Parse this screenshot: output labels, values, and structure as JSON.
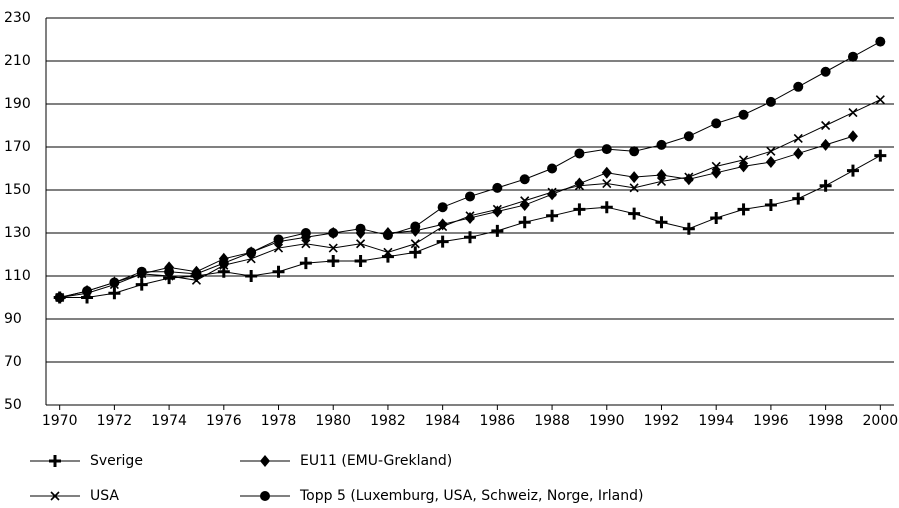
{
  "chart_data": {
    "type": "line",
    "x": [
      1970,
      1971,
      1972,
      1973,
      1974,
      1975,
      1976,
      1977,
      1978,
      1979,
      1980,
      1981,
      1982,
      1983,
      1984,
      1985,
      1986,
      1987,
      1988,
      1989,
      1990,
      1991,
      1992,
      1993,
      1994,
      1995,
      1996,
      1997,
      1998,
      1999,
      2000
    ],
    "series": [
      {
        "name": "Sverige",
        "color": "#000000",
        "marker": "plus",
        "values": [
          100,
          100,
          102,
          106,
          109,
          110,
          112,
          110,
          112,
          116,
          117,
          117,
          119,
          121,
          126,
          128,
          131,
          135,
          138,
          141,
          142,
          139,
          135,
          132,
          137,
          141,
          143,
          146,
          152,
          159,
          166
        ]
      },
      {
        "name": "EU11 (EMU-Grekland)",
        "color": "#000000",
        "marker": "diamond",
        "values": [
          100,
          103,
          107,
          111,
          114,
          112,
          118,
          121,
          126,
          128,
          130,
          130,
          130,
          131,
          134,
          137,
          140,
          143,
          148,
          153,
          158,
          156,
          157,
          155,
          158,
          161,
          163,
          167,
          171,
          175,
          null
        ]
      },
      {
        "name": "USA",
        "color": "#000000",
        "marker": "x",
        "values": [
          100,
          102,
          106,
          111,
          110,
          108,
          115,
          118,
          123,
          125,
          123,
          125,
          121,
          125,
          133,
          138,
          141,
          145,
          149,
          152,
          153,
          151,
          154,
          156,
          161,
          164,
          168,
          174,
          180,
          186,
          192
        ]
      },
      {
        "name": "Topp 5 (Luxemburg, USA, Schweiz, Norge, Irland)",
        "color": "#000000",
        "marker": "circle",
        "values": [
          100,
          103,
          107,
          112,
          112,
          111,
          116,
          121,
          127,
          130,
          130,
          132,
          129,
          133,
          142,
          147,
          151,
          155,
          160,
          167,
          169,
          168,
          171,
          175,
          181,
          185,
          191,
          198,
          205,
          212,
          219
        ]
      }
    ],
    "xlim": [
      1969.5,
      2000.5
    ],
    "xticks": [
      1970,
      1972,
      1974,
      1976,
      1978,
      1980,
      1982,
      1984,
      1986,
      1988,
      1990,
      1992,
      1994,
      1996,
      1998,
      2000
    ],
    "ylim": [
      50,
      230
    ],
    "yticks": [
      50,
      70,
      90,
      110,
      130,
      150,
      170,
      190,
      210,
      230
    ],
    "grid": true
  }
}
